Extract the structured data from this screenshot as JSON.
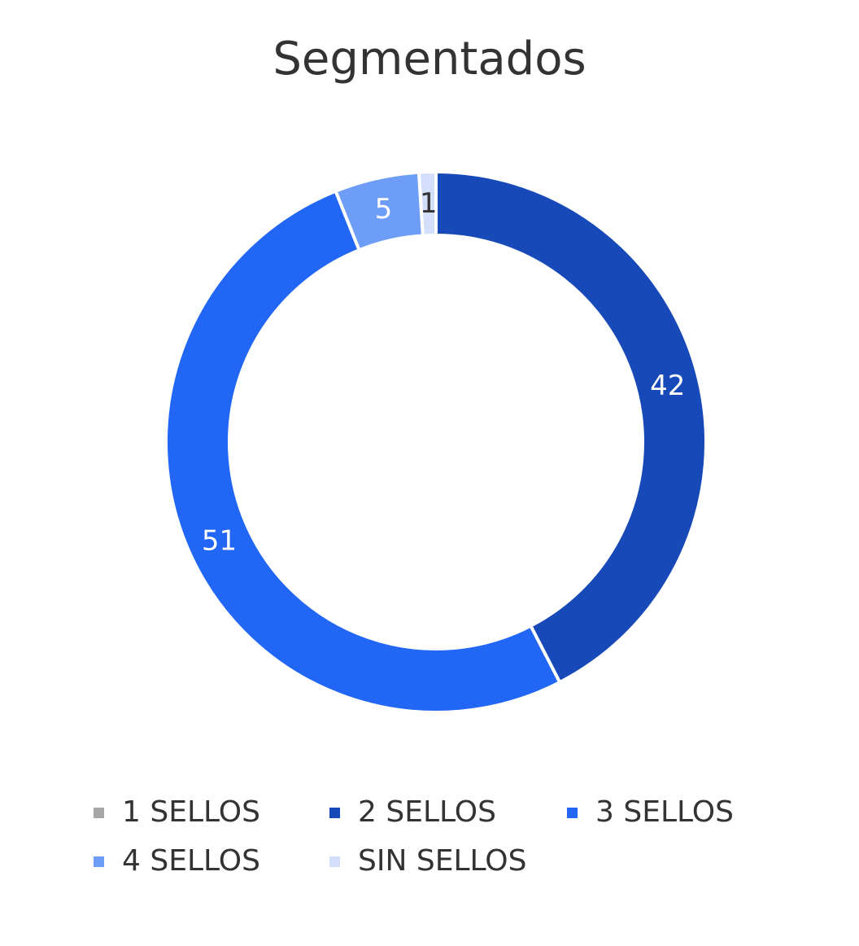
{
  "chart_data": {
    "type": "pie",
    "donut": true,
    "title": "Segmentados",
    "series": [
      {
        "name": "1 SELLOS",
        "value": 0,
        "color": "#a6a6a6",
        "label": ""
      },
      {
        "name": "2 SELLOS",
        "value": 42,
        "color": "#1849b8",
        "label": "42"
      },
      {
        "name": "3 SELLOS",
        "value": 51,
        "color": "#2166f5",
        "label": "51"
      },
      {
        "name": "4 SELLOS",
        "value": 5,
        "color": "#6e9df7",
        "label": "5"
      },
      {
        "name": "SIN SELLOS",
        "value": 1,
        "color": "#d3defb",
        "label": "1"
      }
    ],
    "start_angle": "12 o'clock, clockwise",
    "legend_position": "bottom"
  }
}
